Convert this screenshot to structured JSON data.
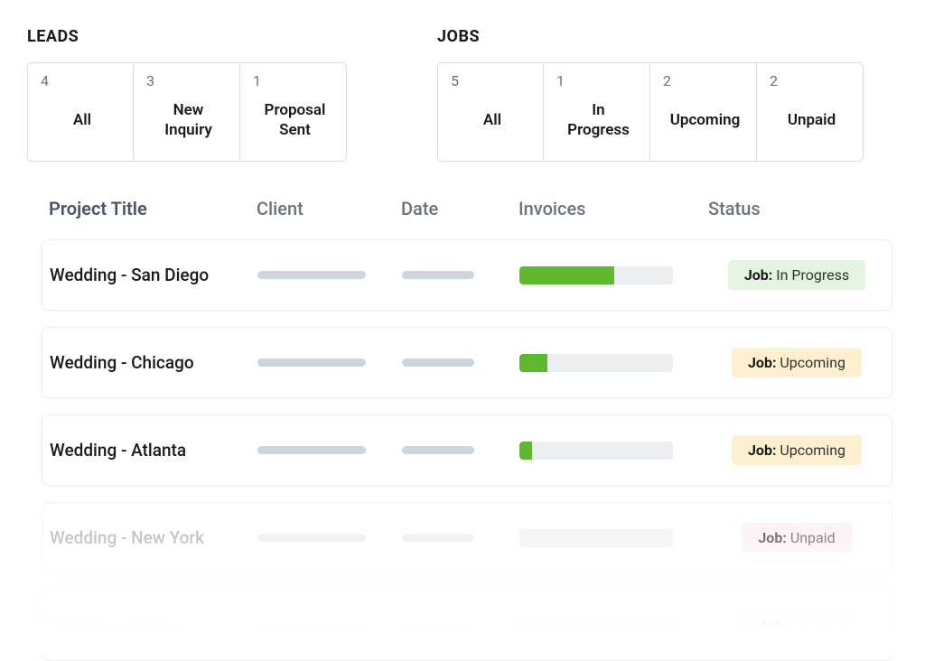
{
  "colors": {
    "card_border": "#d9dde1",
    "text_muted": "#6b7280",
    "text": "#1a1a1a",
    "skeleton": "#cfd6db",
    "skeleton_light": "#e6eaed",
    "bar_track": "#eceff1",
    "bar_fill": "#5fb72e",
    "badge_green": "#e3f4e0",
    "badge_yellow": "#fdf0cf",
    "badge_pink": "#fdecee",
    "row_border": "#eceff1"
  },
  "leads": {
    "title": "LEADS",
    "cards": [
      {
        "count": "4",
        "label": "All"
      },
      {
        "count": "3",
        "label": "New\nInquiry"
      },
      {
        "count": "1",
        "label": "Proposal\nSent"
      }
    ]
  },
  "jobs": {
    "title": "JOBS",
    "cards": [
      {
        "count": "5",
        "label": "All"
      },
      {
        "count": "1",
        "label": "In\nProgress"
      },
      {
        "count": "2",
        "label": "Upcoming"
      },
      {
        "count": "2",
        "label": "Unpaid"
      }
    ]
  },
  "table": {
    "headers": {
      "project": "Project Title",
      "client": "Client",
      "date": "Date",
      "invoices": "Invoices",
      "status": "Status"
    },
    "status_label": "Job:",
    "rows": [
      {
        "title": "Wedding - San Diego",
        "invoice_pct": 62,
        "status": "In Progress",
        "status_color": "green",
        "dim": 0
      },
      {
        "title": "Wedding - Chicago",
        "invoice_pct": 18,
        "status": "Upcoming",
        "status_color": "yellow",
        "dim": 0
      },
      {
        "title": "Wedding - Atlanta",
        "invoice_pct": 8,
        "status": "Upcoming",
        "status_color": "yellow",
        "dim": 0
      },
      {
        "title": "Wedding - New York",
        "invoice_pct": 0,
        "status": "Unpaid",
        "status_color": "pink",
        "dim": 1
      },
      {
        "title": "Wedding - Boston",
        "invoice_pct": 0,
        "status": "Unpaid",
        "status_color": "pink",
        "dim": 2
      }
    ]
  }
}
